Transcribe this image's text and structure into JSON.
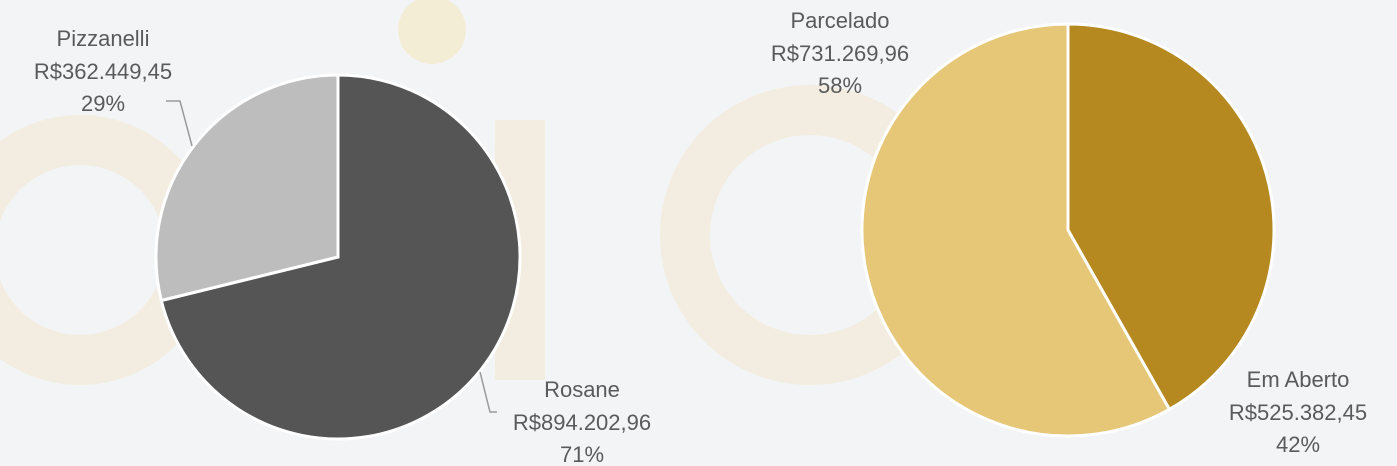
{
  "chart_data": [
    {
      "type": "pie",
      "categories": [
        "Rosane",
        "Pizzanelli"
      ],
      "values": [
        894202.96,
        362449.45
      ],
      "value_labels": [
        "R$894.202,96",
        "R$362.449,45"
      ],
      "percents": [
        71,
        29
      ],
      "percent_labels": [
        "71%",
        "29%"
      ],
      "colors": [
        "#555555",
        "#bdbdbd"
      ]
    },
    {
      "type": "pie",
      "categories": [
        "Em Aberto",
        "Parcelado"
      ],
      "values": [
        525382.45,
        731269.96
      ],
      "value_labels": [
        "R$525.382,45",
        "R$731.269,96"
      ],
      "percents": [
        42,
        58
      ],
      "percent_labels": [
        "42%",
        "58%"
      ],
      "colors": [
        "#b5891f",
        "#e6c677"
      ]
    }
  ]
}
